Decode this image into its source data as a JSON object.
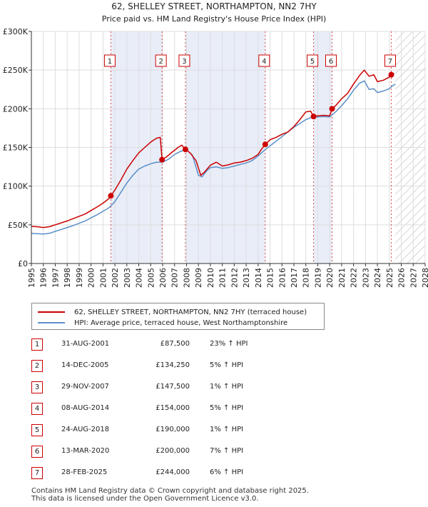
{
  "chart_data": {
    "type": "line",
    "title": "62, SHELLEY STREET, NORTHAMPTON, NN2 7HY",
    "subtitle": "Price paid vs. HM Land Registry's House Price Index (HPI)",
    "xlim": [
      1995,
      2028
    ],
    "ylim": [
      0,
      300000
    ],
    "x_ticks": [
      "1995",
      "1996",
      "1997",
      "1998",
      "1999",
      "2000",
      "2001",
      "2002",
      "2003",
      "2004",
      "2005",
      "2006",
      "2007",
      "2008",
      "2009",
      "2010",
      "2011",
      "2012",
      "2013",
      "2014",
      "2015",
      "2016",
      "2017",
      "2018",
      "2019",
      "2020",
      "2021",
      "2022",
      "2023",
      "2024",
      "2025",
      "2026",
      "2027",
      "2028"
    ],
    "y_ticks": [
      {
        "value": 0,
        "label": "£0"
      },
      {
        "value": 50000,
        "label": "£50K"
      },
      {
        "value": 100000,
        "label": "£100K"
      },
      {
        "value": 150000,
        "label": "£150K"
      },
      {
        "value": 200000,
        "label": "£200K"
      },
      {
        "value": 250000,
        "label": "£250K"
      },
      {
        "value": 300000,
        "label": "£300K"
      }
    ],
    "forecast_start": 2025.5,
    "series": [
      {
        "name": "62, SHELLEY STREET, NORTHAMPTON, NN2 7HY (terraced house)",
        "color": "#cc0000",
        "x": [
          1995.0,
          1995.5,
          1996.0,
          1996.5,
          1997.0,
          1997.5,
          1998.0,
          1998.5,
          1999.0,
          1999.5,
          2000.0,
          2000.5,
          2001.0,
          2001.5,
          2001.66,
          2002.0,
          2002.5,
          2003.0,
          2003.5,
          2004.0,
          2004.5,
          2005.0,
          2005.5,
          2005.8,
          2005.95,
          2006.3,
          2006.8,
          2007.3,
          2007.6,
          2007.91,
          2008.3,
          2008.8,
          2009.2,
          2009.5,
          2010.0,
          2010.5,
          2011.0,
          2011.5,
          2012.0,
          2012.5,
          2013.0,
          2013.5,
          2014.0,
          2014.3,
          2014.6,
          2015.0,
          2015.5,
          2016.0,
          2016.5,
          2017.0,
          2017.5,
          2018.0,
          2018.4,
          2018.65,
          2019.0,
          2019.5,
          2020.0,
          2020.2,
          2020.5,
          2021.0,
          2021.5,
          2022.0,
          2022.5,
          2022.9,
          2023.3,
          2023.7,
          2024.0,
          2024.5,
          2025.0,
          2025.16,
          2025.4
        ],
        "values": [
          48000,
          47500,
          46500,
          47500,
          50000,
          52500,
          55000,
          58000,
          61000,
          64000,
          68500,
          73000,
          78000,
          84000,
          87500,
          95000,
          108000,
          122000,
          133000,
          143000,
          150000,
          157000,
          162000,
          163000,
          134250,
          137500,
          144000,
          150000,
          153000,
          147500,
          143000,
          133000,
          114000,
          118000,
          127000,
          131000,
          126000,
          127500,
          130000,
          131000,
          133000,
          136000,
          141000,
          148000,
          154000,
          160000,
          163000,
          167000,
          170000,
          177000,
          186000,
          196000,
          197000,
          190000,
          191000,
          191500,
          191000,
          200000,
          204000,
          213000,
          220000,
          232000,
          243000,
          250000,
          242000,
          244000,
          235000,
          237000,
          241000,
          244000,
          246000
        ]
      },
      {
        "name": "HPI: Average price, terraced house, West Northamptonshire",
        "color": "#5b8fc9",
        "x": [
          1995.0,
          1995.5,
          1996.0,
          1996.5,
          1997.0,
          1997.5,
          1998.0,
          1998.5,
          1999.0,
          1999.5,
          2000.0,
          2000.5,
          2001.0,
          2001.5,
          2002.0,
          2002.5,
          2003.0,
          2003.5,
          2004.0,
          2004.5,
          2005.0,
          2005.5,
          2006.0,
          2006.5,
          2007.0,
          2007.5,
          2008.0,
          2008.5,
          2009.0,
          2009.3,
          2009.7,
          2010.0,
          2010.5,
          2011.0,
          2011.5,
          2012.0,
          2012.5,
          2013.0,
          2013.5,
          2014.0,
          2014.5,
          2015.0,
          2015.5,
          2016.0,
          2016.5,
          2017.0,
          2017.5,
          2018.0,
          2018.5,
          2019.0,
          2019.5,
          2020.0,
          2020.5,
          2021.0,
          2021.5,
          2022.0,
          2022.5,
          2022.9,
          2023.3,
          2023.7,
          2024.0,
          2024.5,
          2025.0,
          2025.2,
          2025.5
        ],
        "values": [
          39000,
          38500,
          38000,
          39000,
          41500,
          44000,
          46500,
          49000,
          52000,
          55000,
          59000,
          63000,
          67500,
          72000,
          80000,
          92000,
          104000,
          114000,
          122000,
          126000,
          129000,
          131000,
          131000,
          135000,
          141000,
          145000,
          147000,
          140000,
          114000,
          112000,
          120000,
          124000,
          125000,
          123000,
          124000,
          126000,
          128000,
          130000,
          133000,
          139000,
          146000,
          152000,
          158000,
          164000,
          170000,
          176000,
          181000,
          186000,
          189000,
          189500,
          190000,
          189500,
          196000,
          204000,
          213000,
          224000,
          233000,
          236000,
          225000,
          226000,
          221000,
          223000,
          226000,
          229000,
          232000
        ]
      }
    ],
    "sales": [
      {
        "id": "1",
        "x": 2001.66,
        "value": 87500
      },
      {
        "id": "2",
        "x": 2005.95,
        "value": 134250
      },
      {
        "id": "3",
        "x": 2007.91,
        "value": 147500
      },
      {
        "id": "4",
        "x": 2014.6,
        "value": 154000
      },
      {
        "id": "5",
        "x": 2018.65,
        "value": 190000
      },
      {
        "id": "6",
        "x": 2020.2,
        "value": 200000
      },
      {
        "id": "7",
        "x": 2025.16,
        "value": 244000
      }
    ],
    "shaded_periods": [
      [
        2001.66,
        2005.95
      ],
      [
        2007.91,
        2014.6
      ],
      [
        2018.65,
        2020.2
      ]
    ]
  },
  "legend": {
    "property_label": "62, SHELLEY STREET, NORTHAMPTON, NN2 7HY (terraced house)",
    "hpi_label": "HPI: Average price, terraced house, West Northamptonshire",
    "property_color": "#cc0000",
    "hpi_color": "#5b8fc9"
  },
  "transactions": [
    {
      "num": "1",
      "date": "31-AUG-2001",
      "price": "£87,500",
      "hpi": "23% ↑ HPI"
    },
    {
      "num": "2",
      "date": "14-DEC-2005",
      "price": "£134,250",
      "hpi": "5% ↑ HPI"
    },
    {
      "num": "3",
      "date": "29-NOV-2007",
      "price": "£147,500",
      "hpi": "1% ↑ HPI"
    },
    {
      "num": "4",
      "date": "08-AUG-2014",
      "price": "£154,000",
      "hpi": "5% ↑ HPI"
    },
    {
      "num": "5",
      "date": "24-AUG-2018",
      "price": "£190,000",
      "hpi": "1% ↑ HPI"
    },
    {
      "num": "6",
      "date": "13-MAR-2020",
      "price": "£200,000",
      "hpi": "7% ↑ HPI"
    },
    {
      "num": "7",
      "date": "28-FEB-2025",
      "price": "£244,000",
      "hpi": "6% ↑ HPI"
    }
  ],
  "footer": {
    "line1": "Contains HM Land Registry data © Crown copyright and database right 2025.",
    "line2": "This data is licensed under the Open Government Licence v3.0."
  }
}
